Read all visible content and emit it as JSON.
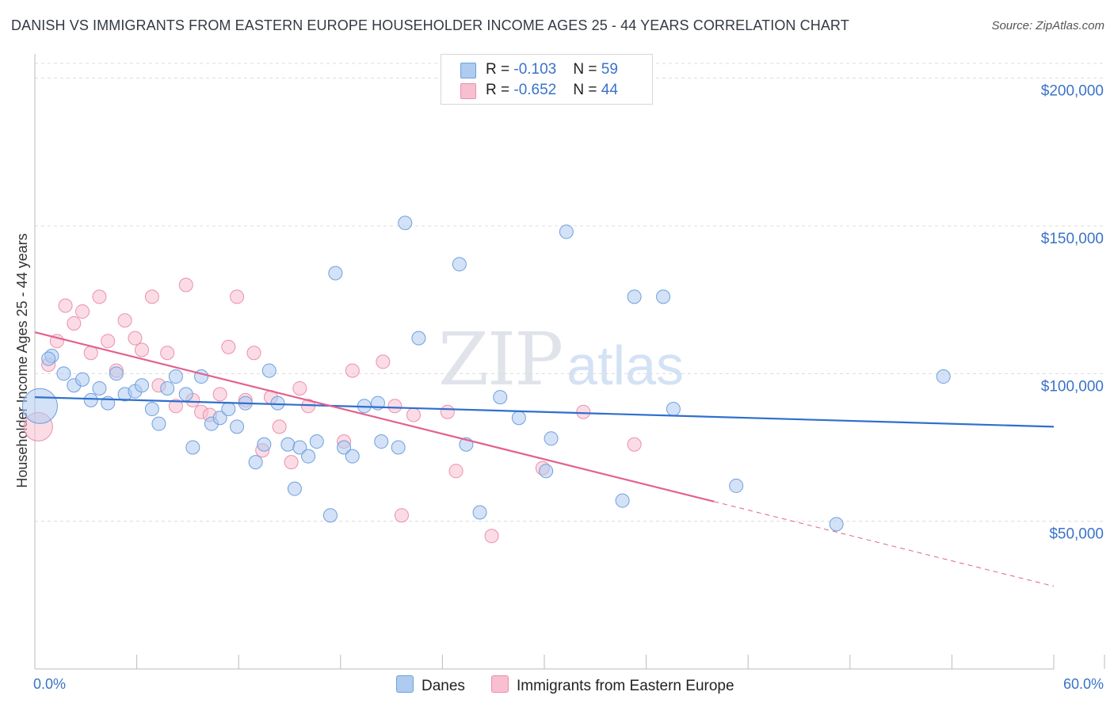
{
  "title": "DANISH VS IMMIGRANTS FROM EASTERN EUROPE HOUSEHOLDER INCOME AGES 25 - 44 YEARS CORRELATION CHART",
  "source": "Source: ZipAtlas.com",
  "watermark": {
    "zip": "ZIP",
    "atlas": "atlas"
  },
  "legend_top": {
    "rows": [
      {
        "r_label": "R = ",
        "r_value": "-0.103",
        "n_label": "N = ",
        "n_value": "59"
      },
      {
        "r_label": "R = ",
        "r_value": "-0.652",
        "n_label": "N = ",
        "n_value": "44"
      }
    ]
  },
  "legend_bottom": {
    "danes": "Danes",
    "immigrants": "Immigrants from Eastern Europe"
  },
  "colors": {
    "danes_fill": "#aecbf0",
    "danes_stroke": "#6f9fde",
    "danes_line": "#2f6fce",
    "imm_fill": "#f7bfd0",
    "imm_stroke": "#ec8fae",
    "imm_line": "#e2628f",
    "grid": "#dcdcdc",
    "axis_text": "#3a73c8"
  },
  "chart_data": {
    "type": "scatter",
    "title": "DANISH VS IMMIGRANTS FROM EASTERN EUROPE HOUSEHOLDER INCOME AGES 25 - 44 YEARS CORRELATION CHART",
    "xlabel": "",
    "ylabel": "Householder Income Ages 25 - 44 years",
    "xlim": [
      0,
      60
    ],
    "ylim": [
      0,
      205000
    ],
    "x_tick_labels": [
      "0.0%",
      "60.0%"
    ],
    "y_ticks": [
      50000,
      100000,
      150000,
      200000
    ],
    "y_tick_labels": [
      "$50,000",
      "$100,000",
      "$150,000",
      "$200,000"
    ],
    "grid": true,
    "series": [
      {
        "name": "Danes",
        "R": -0.103,
        "N": 59,
        "trend": {
          "x": [
            0,
            60
          ],
          "y": [
            92000,
            82000
          ],
          "dashed_from": null
        },
        "points": [
          {
            "x": 0.3,
            "y": 89000,
            "big": true
          },
          {
            "x": 1.0,
            "y": 106000
          },
          {
            "x": 1.7,
            "y": 100000
          },
          {
            "x": 2.3,
            "y": 96000
          },
          {
            "x": 2.8,
            "y": 98000
          },
          {
            "x": 3.3,
            "y": 91000
          },
          {
            "x": 3.8,
            "y": 95000
          },
          {
            "x": 4.3,
            "y": 90000
          },
          {
            "x": 4.8,
            "y": 100000
          },
          {
            "x": 5.3,
            "y": 93000
          },
          {
            "x": 5.9,
            "y": 94000
          },
          {
            "x": 6.3,
            "y": 96000
          },
          {
            "x": 6.9,
            "y": 88000
          },
          {
            "x": 7.3,
            "y": 83000
          },
          {
            "x": 7.8,
            "y": 95000
          },
          {
            "x": 8.3,
            "y": 99000
          },
          {
            "x": 8.9,
            "y": 93000
          },
          {
            "x": 9.3,
            "y": 75000
          },
          {
            "x": 9.8,
            "y": 99000
          },
          {
            "x": 10.4,
            "y": 83000
          },
          {
            "x": 10.9,
            "y": 85000
          },
          {
            "x": 11.4,
            "y": 88000
          },
          {
            "x": 11.9,
            "y": 82000
          },
          {
            "x": 12.4,
            "y": 90000
          },
          {
            "x": 13.0,
            "y": 70000
          },
          {
            "x": 13.5,
            "y": 76000
          },
          {
            "x": 13.8,
            "y": 101000
          },
          {
            "x": 14.3,
            "y": 90000
          },
          {
            "x": 14.9,
            "y": 76000
          },
          {
            "x": 15.3,
            "y": 61000
          },
          {
            "x": 15.6,
            "y": 75000
          },
          {
            "x": 16.1,
            "y": 72000
          },
          {
            "x": 16.6,
            "y": 77000
          },
          {
            "x": 17.4,
            "y": 52000
          },
          {
            "x": 17.7,
            "y": 134000
          },
          {
            "x": 18.2,
            "y": 75000
          },
          {
            "x": 18.7,
            "y": 72000
          },
          {
            "x": 19.4,
            "y": 89000
          },
          {
            "x": 20.2,
            "y": 90000
          },
          {
            "x": 20.4,
            "y": 77000
          },
          {
            "x": 21.4,
            "y": 75000
          },
          {
            "x": 21.8,
            "y": 151000
          },
          {
            "x": 22.6,
            "y": 112000
          },
          {
            "x": 25.0,
            "y": 137000
          },
          {
            "x": 25.4,
            "y": 76000
          },
          {
            "x": 26.2,
            "y": 53000
          },
          {
            "x": 27.4,
            "y": 92000
          },
          {
            "x": 28.5,
            "y": 85000
          },
          {
            "x": 30.1,
            "y": 67000
          },
          {
            "x": 30.4,
            "y": 78000
          },
          {
            "x": 31.3,
            "y": 148000
          },
          {
            "x": 34.6,
            "y": 57000
          },
          {
            "x": 35.3,
            "y": 126000
          },
          {
            "x": 37.0,
            "y": 126000
          },
          {
            "x": 37.6,
            "y": 88000
          },
          {
            "x": 41.3,
            "y": 62000
          },
          {
            "x": 47.2,
            "y": 49000
          },
          {
            "x": 53.5,
            "y": 99000
          },
          {
            "x": 0.8,
            "y": 105000
          }
        ]
      },
      {
        "name": "Immigrants from Eastern Europe",
        "R": -0.652,
        "N": 44,
        "trend": {
          "x": [
            0,
            60
          ],
          "y": [
            114000,
            28000
          ],
          "dashed_from": 40
        },
        "points": [
          {
            "x": 0.2,
            "y": 82000,
            "big": true
          },
          {
            "x": 0.8,
            "y": 103000
          },
          {
            "x": 1.3,
            "y": 111000
          },
          {
            "x": 1.8,
            "y": 123000
          },
          {
            "x": 2.3,
            "y": 117000
          },
          {
            "x": 2.8,
            "y": 121000
          },
          {
            "x": 3.3,
            "y": 107000
          },
          {
            "x": 3.8,
            "y": 126000
          },
          {
            "x": 4.3,
            "y": 111000
          },
          {
            "x": 4.8,
            "y": 101000
          },
          {
            "x": 5.3,
            "y": 118000
          },
          {
            "x": 5.9,
            "y": 112000
          },
          {
            "x": 6.3,
            "y": 108000
          },
          {
            "x": 6.9,
            "y": 126000
          },
          {
            "x": 7.3,
            "y": 96000
          },
          {
            "x": 7.8,
            "y": 107000
          },
          {
            "x": 8.3,
            "y": 89000
          },
          {
            "x": 8.9,
            "y": 130000
          },
          {
            "x": 9.3,
            "y": 91000
          },
          {
            "x": 9.8,
            "y": 87000
          },
          {
            "x": 10.3,
            "y": 86000
          },
          {
            "x": 10.9,
            "y": 93000
          },
          {
            "x": 11.4,
            "y": 109000
          },
          {
            "x": 11.9,
            "y": 126000
          },
          {
            "x": 12.4,
            "y": 91000
          },
          {
            "x": 12.9,
            "y": 107000
          },
          {
            "x": 13.4,
            "y": 74000
          },
          {
            "x": 13.9,
            "y": 92000
          },
          {
            "x": 14.4,
            "y": 82000
          },
          {
            "x": 15.1,
            "y": 70000
          },
          {
            "x": 15.6,
            "y": 95000
          },
          {
            "x": 16.1,
            "y": 89000
          },
          {
            "x": 18.2,
            "y": 77000
          },
          {
            "x": 18.7,
            "y": 101000
          },
          {
            "x": 20.5,
            "y": 104000
          },
          {
            "x": 21.2,
            "y": 89000
          },
          {
            "x": 21.6,
            "y": 52000
          },
          {
            "x": 22.3,
            "y": 86000
          },
          {
            "x": 24.3,
            "y": 87000
          },
          {
            "x": 24.8,
            "y": 67000
          },
          {
            "x": 26.9,
            "y": 45000
          },
          {
            "x": 29.9,
            "y": 68000
          },
          {
            "x": 32.3,
            "y": 87000
          },
          {
            "x": 35.3,
            "y": 76000
          }
        ]
      }
    ]
  }
}
